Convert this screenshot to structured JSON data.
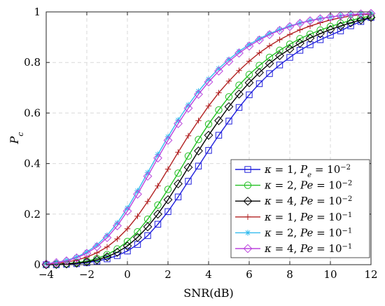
{
  "chart_data": {
    "type": "line",
    "title": "",
    "xlabel": "SNR(dB)",
    "ylabel_main": "P",
    "ylabel_sub": "c",
    "xlim": [
      -4,
      12
    ],
    "ylim": [
      0,
      1
    ],
    "xticks": [
      "−4",
      "−2",
      "0",
      "2",
      "4",
      "6",
      "8",
      "10",
      "12"
    ],
    "yticks": [
      "0",
      "0.2",
      "0.4",
      "0.6",
      "0.8",
      "1"
    ],
    "grid": true,
    "legend_position": "bottom-right",
    "x": [
      -4,
      -3.5,
      -3,
      -2.5,
      -2,
      -1.5,
      -1,
      -0.5,
      0,
      0.5,
      1,
      1.5,
      2,
      2.5,
      3,
      3.5,
      4,
      4.5,
      5,
      5.5,
      6,
      6.5,
      7,
      7.5,
      8,
      8.5,
      9,
      9.5,
      10,
      10.5,
      11,
      11.5,
      12
    ],
    "series": [
      {
        "legend": {
          "k": "κ",
          "keq": " = 1, ",
          "p": "P",
          "psub": "e",
          "peq": " = 10",
          "exp": "−2"
        },
        "color": "#1f1fdc",
        "marker": "square",
        "values": [
          0.0,
          0.0,
          0.002,
          0.004,
          0.008,
          0.014,
          0.023,
          0.036,
          0.054,
          0.08,
          0.115,
          0.16,
          0.21,
          0.268,
          0.33,
          0.39,
          0.452,
          0.512,
          0.568,
          0.622,
          0.672,
          0.716,
          0.756,
          0.79,
          0.82,
          0.848,
          0.87,
          0.89,
          0.908,
          0.925,
          0.945,
          0.962,
          0.978
        ]
      },
      {
        "legend": {
          "k": "κ",
          "keq": " = 2, ",
          "p": "Pe",
          "psub": "",
          "peq": " = 10",
          "exp": "−2"
        },
        "color": "#22c022",
        "marker": "circle",
        "values": [
          0.0,
          0.002,
          0.004,
          0.008,
          0.014,
          0.024,
          0.04,
          0.062,
          0.092,
          0.13,
          0.18,
          0.236,
          0.298,
          0.362,
          0.43,
          0.495,
          0.556,
          0.612,
          0.664,
          0.71,
          0.752,
          0.788,
          0.82,
          0.848,
          0.872,
          0.894,
          0.912,
          0.928,
          0.942,
          0.955,
          0.966,
          0.976,
          0.984
        ]
      },
      {
        "legend": {
          "k": "κ",
          "keq": " = 4, ",
          "p": "Pe",
          "psub": "",
          "peq": " = 10",
          "exp": "−2"
        },
        "color": "#000000",
        "marker": "diamond",
        "values": [
          0.0,
          0.001,
          0.003,
          0.006,
          0.011,
          0.019,
          0.031,
          0.049,
          0.074,
          0.108,
          0.15,
          0.2,
          0.257,
          0.32,
          0.385,
          0.45,
          0.512,
          0.57,
          0.625,
          0.675,
          0.72,
          0.76,
          0.796,
          0.827,
          0.853,
          0.876,
          0.896,
          0.914,
          0.93,
          0.944,
          0.957,
          0.968,
          0.978
        ]
      },
      {
        "legend": {
          "k": "κ",
          "keq": " = 1, ",
          "p": "Pe",
          "psub": "",
          "peq": " = 10",
          "exp": "−1"
        },
        "color": "#b22222",
        "marker": "plus",
        "values": [
          0.002,
          0.005,
          0.01,
          0.018,
          0.03,
          0.047,
          0.07,
          0.102,
          0.142,
          0.192,
          0.25,
          0.312,
          0.378,
          0.445,
          0.51,
          0.57,
          0.628,
          0.68,
          0.726,
          0.768,
          0.805,
          0.838,
          0.866,
          0.89,
          0.911,
          0.929,
          0.944,
          0.957,
          0.968,
          0.977,
          0.984,
          0.989,
          0.99
        ]
      },
      {
        "legend": {
          "k": "κ",
          "keq": " = 2, ",
          "p": "Pe",
          "psub": "",
          "peq": " = 10",
          "exp": "−1"
        },
        "color": "#33bbee",
        "marker": "asterisk",
        "values": [
          0.004,
          0.009,
          0.017,
          0.03,
          0.05,
          0.078,
          0.116,
          0.165,
          0.224,
          0.292,
          0.364,
          0.436,
          0.506,
          0.572,
          0.632,
          0.686,
          0.734,
          0.776,
          0.812,
          0.844,
          0.871,
          0.894,
          0.914,
          0.93,
          0.944,
          0.956,
          0.966,
          0.974,
          0.98,
          0.985,
          0.989,
          0.992,
          0.994
        ]
      },
      {
        "legend": {
          "k": "κ",
          "keq": " = 4, ",
          "p": "Pe",
          "psub": "",
          "peq": " = 10",
          "exp": "−1"
        },
        "color": "#bb44dd",
        "marker": "diamond",
        "values": [
          0.003,
          0.008,
          0.015,
          0.027,
          0.045,
          0.071,
          0.107,
          0.154,
          0.212,
          0.279,
          0.35,
          0.422,
          0.492,
          0.558,
          0.619,
          0.674,
          0.723,
          0.766,
          0.804,
          0.837,
          0.865,
          0.889,
          0.91,
          0.927,
          0.942,
          0.955,
          0.965,
          0.973,
          0.98,
          0.985,
          0.989,
          0.992,
          0.994
        ]
      }
    ]
  }
}
